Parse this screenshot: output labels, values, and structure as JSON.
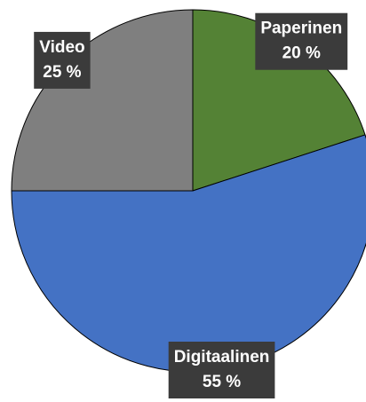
{
  "chart_data": {
    "type": "pie",
    "categories": [
      "Paperinen",
      "Digitaalinen",
      "Video"
    ],
    "values": [
      20,
      55,
      25
    ],
    "value_labels": [
      "20 %",
      "55 %",
      "25 %"
    ],
    "colors": [
      "#548235",
      "#4472c4",
      "#7f7f7f"
    ]
  }
}
